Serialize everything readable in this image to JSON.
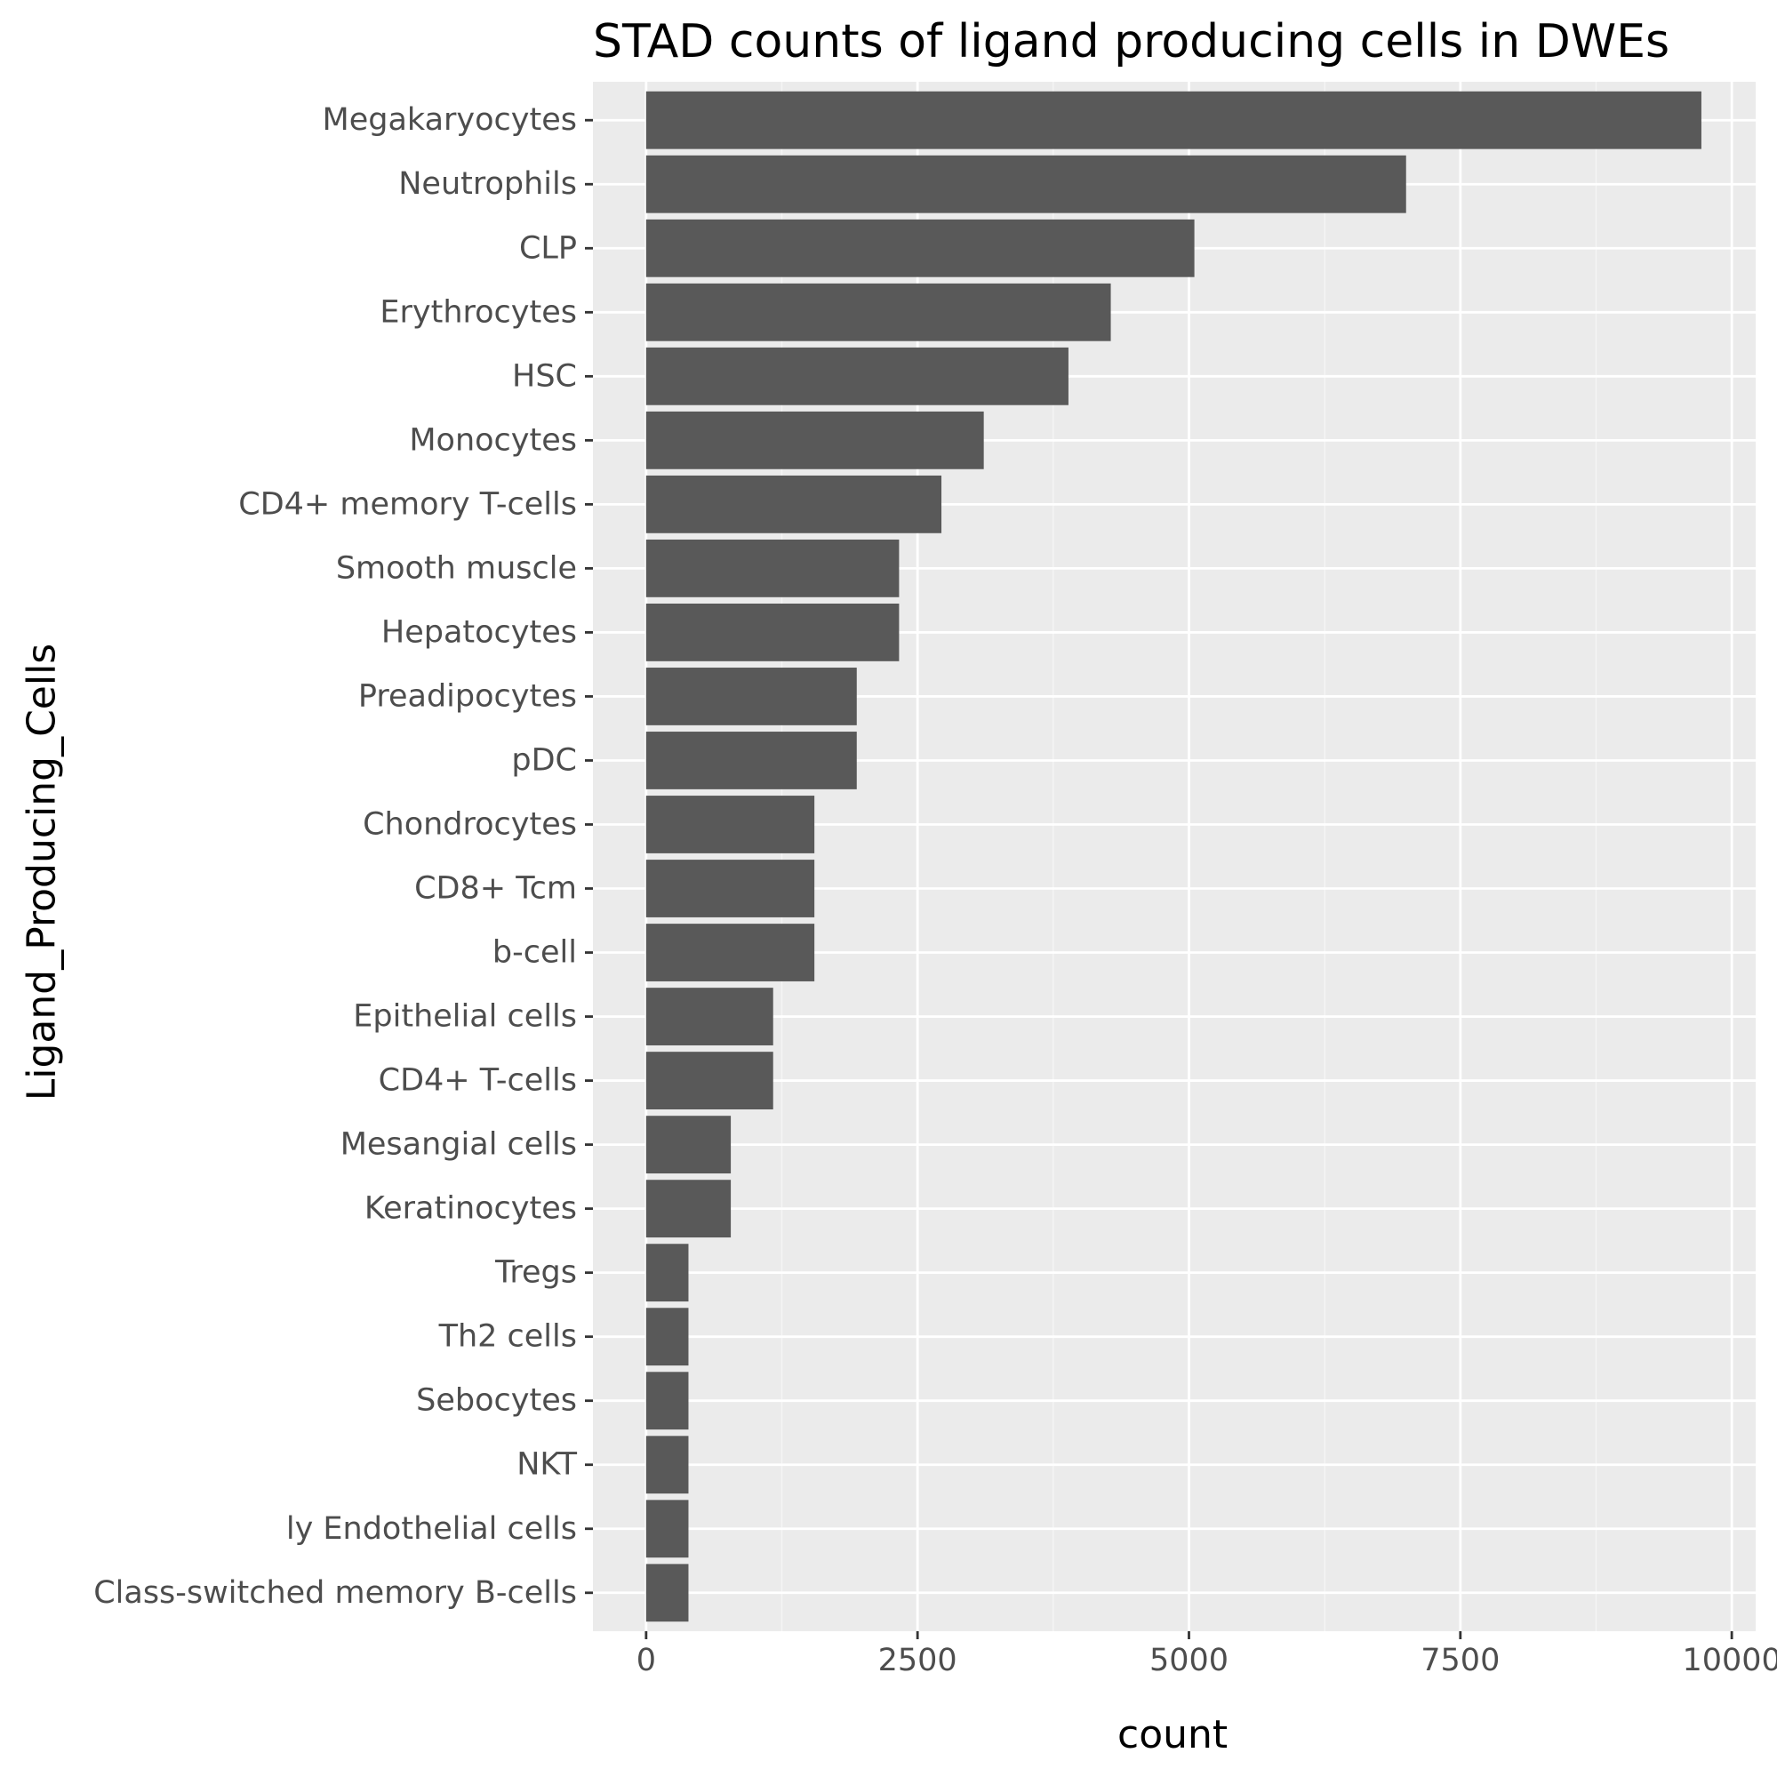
{
  "chart_data": {
    "type": "bar",
    "orientation": "horizontal",
    "title": "STAD counts of ligand producing cells in DWEs",
    "xlabel": "count",
    "ylabel": "Ligand_Producing_Cells",
    "categories": [
      "Megakaryocytes",
      "Neutrophils",
      "CLP",
      "Erythrocytes",
      "HSC",
      "Monocytes",
      "CD4+ memory T-cells",
      "Smooth muscle",
      "Hepatocytes",
      "Preadipocytes",
      "pDC",
      "Chondrocytes",
      "CD8+ Tcm",
      "b-cell",
      "Epithelial cells",
      "CD4+ T-cells",
      "Mesangial cells",
      "Keratinocytes",
      "Tregs",
      "Th2 cells",
      "Sebocytes",
      "NKT",
      "ly Endothelial cells",
      "Class-switched memory B-cells"
    ],
    "values": [
      9720,
      7000,
      5050,
      4280,
      3890,
      3110,
      2720,
      2330,
      2330,
      1940,
      1940,
      1550,
      1550,
      1550,
      1170,
      1170,
      780,
      780,
      390,
      390,
      390,
      390,
      390,
      390
    ],
    "xlim": [
      -490,
      10220
    ],
    "x_ticks": [
      0,
      2500,
      5000,
      7500,
      10000
    ],
    "x_tick_labels": [
      "0",
      "2500",
      "5000",
      "7500",
      "10000"
    ],
    "grid": true,
    "colors": {
      "bar": "#595959",
      "panel_background": "#ebebeb",
      "grid_major": "#ffffff",
      "grid_minor": "#f5f5f5",
      "tick_text": "#4d4d4d"
    }
  }
}
